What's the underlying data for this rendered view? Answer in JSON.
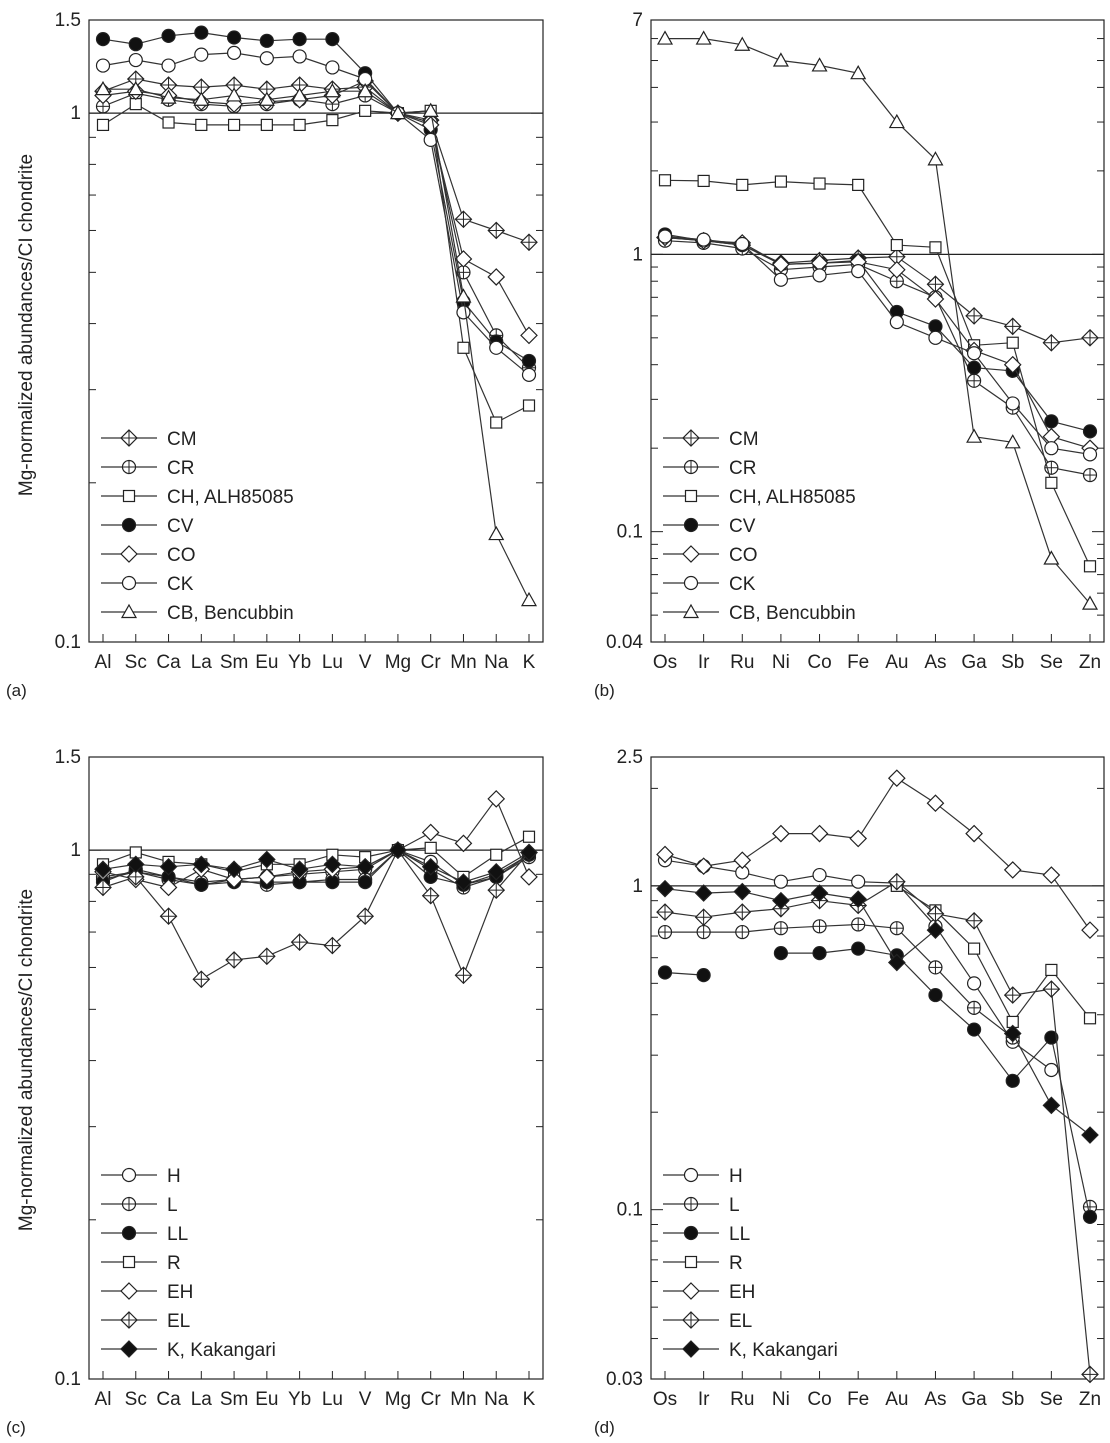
{
  "figure": {
    "ylabel": "Mg-normalized abundances/CI chondrite"
  },
  "chart_data": [
    {
      "type": "line",
      "panel": "(a)",
      "yscale": "log",
      "ylim": [
        0.1,
        1.5
      ],
      "yticks": [
        0.1,
        1,
        1.5
      ],
      "reference_line": 1,
      "categories": [
        "Al",
        "Sc",
        "Ca",
        "La",
        "Sm",
        "Eu",
        "Yb",
        "Lu",
        "V",
        "Mg",
        "Cr",
        "Mn",
        "Na",
        "K"
      ],
      "legend_position": "bottom-left",
      "series": [
        {
          "name": "CM",
          "marker": "diamond-plus",
          "values": [
            1.1,
            1.16,
            1.13,
            1.12,
            1.13,
            1.11,
            1.13,
            1.11,
            1.12,
            1,
            0.97,
            0.63,
            0.6,
            0.57
          ]
        },
        {
          "name": "CR",
          "marker": "circle-plus",
          "values": [
            1.03,
            1.09,
            1.06,
            1.04,
            1.03,
            1.04,
            1.06,
            1.04,
            1.08,
            1,
            0.96,
            0.5,
            0.38,
            0.33
          ]
        },
        {
          "name": "CH, ALH85085",
          "marker": "square-open",
          "values": [
            0.95,
            1.04,
            0.96,
            0.95,
            0.95,
            0.95,
            0.95,
            0.97,
            1.01,
            1,
            1.01,
            0.36,
            0.26,
            0.28
          ]
        },
        {
          "name": "CV",
          "marker": "circle-filled",
          "values": [
            1.38,
            1.35,
            1.4,
            1.42,
            1.39,
            1.37,
            1.38,
            1.38,
            1.19,
            1,
            0.93,
            0.44,
            0.37,
            0.34
          ]
        },
        {
          "name": "CO",
          "marker": "diamond-open",
          "values": [
            1.08,
            1.1,
            1.08,
            1.05,
            1.04,
            1.05,
            1.06,
            1.08,
            1.15,
            1,
            0.95,
            0.53,
            0.49,
            0.38
          ]
        },
        {
          "name": "CK",
          "marker": "circle-open",
          "values": [
            1.23,
            1.26,
            1.23,
            1.29,
            1.3,
            1.27,
            1.28,
            1.22,
            1.16,
            1,
            0.89,
            0.42,
            0.36,
            0.32
          ]
        },
        {
          "name": "CB, Bencubbin",
          "marker": "triangle-open",
          "values": [
            1.11,
            1.11,
            1.07,
            1.06,
            1.08,
            1.06,
            1.08,
            1.1,
            1.1,
            1,
            1.01,
            0.45,
            0.16,
            0.12
          ]
        }
      ]
    },
    {
      "type": "line",
      "panel": "(b)",
      "yscale": "log",
      "ylim": [
        0.04,
        7
      ],
      "yticks": [
        0.04,
        0.1,
        1,
        7
      ],
      "reference_line": 1,
      "categories": [
        "Os",
        "Ir",
        "Ru",
        "Ni",
        "Co",
        "Fe",
        "Au",
        "As",
        "Ga",
        "Sb",
        "Se",
        "Zn"
      ],
      "legend_position": "bottom-left",
      "series": [
        {
          "name": "CM",
          "marker": "diamond-plus",
          "values": [
            1.15,
            1.12,
            1.08,
            0.93,
            0.95,
            0.97,
            0.98,
            0.78,
            0.6,
            0.55,
            0.48,
            0.5
          ]
        },
        {
          "name": "CR",
          "marker": "circle-plus",
          "values": [
            1.12,
            1.1,
            1.05,
            0.88,
            0.9,
            0.92,
            0.8,
            0.7,
            0.35,
            0.28,
            0.17,
            0.16
          ]
        },
        {
          "name": "CH, ALH85085",
          "marker": "square-open",
          "values": [
            1.85,
            1.84,
            1.78,
            1.83,
            1.8,
            1.78,
            1.08,
            1.06,
            0.47,
            0.48,
            0.15,
            0.075
          ]
        },
        {
          "name": "CV",
          "marker": "circle-filled",
          "values": [
            1.18,
            1.12,
            1.08,
            0.92,
            0.93,
            0.95,
            0.62,
            0.55,
            0.39,
            0.38,
            0.25,
            0.23
          ]
        },
        {
          "name": "CO",
          "marker": "diamond-open",
          "values": [
            1.15,
            1.12,
            1.1,
            0.92,
            0.93,
            0.94,
            0.88,
            0.69,
            0.45,
            0.4,
            0.22,
            0.2
          ]
        },
        {
          "name": "CK",
          "marker": "circle-open",
          "values": [
            1.16,
            1.13,
            1.09,
            0.81,
            0.84,
            0.87,
            0.57,
            0.5,
            0.44,
            0.29,
            0.2,
            0.19
          ]
        },
        {
          "name": "CB, Bencubbin",
          "marker": "triangle-open",
          "values": [
            6.0,
            6.0,
            5.7,
            5.0,
            4.8,
            4.5,
            3.0,
            2.2,
            0.22,
            0.21,
            0.08,
            0.055
          ]
        }
      ]
    },
    {
      "type": "line",
      "panel": "(c)",
      "yscale": "log",
      "ylim": [
        0.1,
        1.5
      ],
      "yticks": [
        0.1,
        1,
        1.5
      ],
      "reference_line": 1,
      "categories": [
        "Al",
        "Sc",
        "Ca",
        "La",
        "Sm",
        "Eu",
        "Yb",
        "Lu",
        "V",
        "Mg",
        "Cr",
        "Mn",
        "Na",
        "K"
      ],
      "legend_position": "bottom-left",
      "series": [
        {
          "name": "H",
          "marker": "circle-open",
          "values": [
            0.88,
            0.91,
            0.89,
            0.87,
            0.88,
            0.89,
            0.9,
            0.91,
            0.92,
            1,
            0.95,
            0.86,
            0.9,
            0.98
          ]
        },
        {
          "name": "L",
          "marker": "circle-plus",
          "values": [
            0.89,
            0.91,
            0.88,
            0.86,
            0.88,
            0.86,
            0.87,
            0.88,
            0.88,
            1,
            0.92,
            0.85,
            0.89,
            0.97
          ]
        },
        {
          "name": "LL",
          "marker": "circle-filled",
          "values": [
            0.87,
            0.92,
            0.89,
            0.86,
            0.87,
            0.87,
            0.87,
            0.87,
            0.87,
            1,
            0.89,
            0.86,
            0.89,
            0.98
          ]
        },
        {
          "name": "R",
          "marker": "square-open",
          "values": [
            0.94,
            0.99,
            0.95,
            0.94,
            0.91,
            0.94,
            0.94,
            0.98,
            0.97,
            1,
            1.01,
            0.89,
            0.98,
            1.06
          ]
        },
        {
          "name": "EH",
          "marker": "diamond-open",
          "values": [
            0.91,
            0.88,
            0.85,
            0.92,
            0.88,
            0.89,
            0.91,
            0.92,
            0.93,
            1,
            1.08,
            1.03,
            1.25,
            0.89
          ]
        },
        {
          "name": "EL",
          "marker": "diamond-plus",
          "values": [
            0.85,
            0.89,
            0.75,
            0.57,
            0.62,
            0.63,
            0.67,
            0.66,
            0.75,
            1,
            0.82,
            0.58,
            0.84,
            0.99
          ]
        },
        {
          "name": "K, Kakangari",
          "marker": "diamond-filled",
          "values": [
            0.92,
            0.94,
            0.93,
            0.94,
            0.92,
            0.96,
            0.92,
            0.94,
            0.93,
            1,
            0.93,
            0.87,
            0.91,
            0.99
          ]
        }
      ]
    },
    {
      "type": "line",
      "panel": "(d)",
      "yscale": "log",
      "ylim": [
        0.03,
        2.5
      ],
      "yticks": [
        0.03,
        0.1,
        1,
        2.5
      ],
      "reference_line": 1,
      "categories": [
        "Os",
        "Ir",
        "Ru",
        "Ni",
        "Co",
        "Fe",
        "Au",
        "As",
        "Ga",
        "Sb",
        "Se",
        "Zn"
      ],
      "legend_position": "bottom-left",
      "series": [
        {
          "name": "H",
          "marker": "circle-open",
          "values": [
            1.2,
            1.15,
            1.1,
            1.03,
            1.08,
            1.03,
            1.02,
            0.75,
            0.5,
            0.33,
            0.27,
            null
          ]
        },
        {
          "name": "L",
          "marker": "circle-plus",
          "values": [
            0.72,
            0.72,
            0.72,
            0.74,
            0.75,
            0.76,
            0.74,
            0.56,
            0.42,
            0.34,
            null,
            0.102
          ]
        },
        {
          "name": "LL",
          "marker": "circle-filled",
          "values": [
            0.54,
            0.53,
            null,
            0.62,
            0.62,
            0.64,
            0.61,
            0.46,
            0.36,
            0.25,
            0.34,
            0.095
          ]
        },
        {
          "name": "R",
          "marker": "square-open",
          "values": [
            null,
            null,
            null,
            null,
            null,
            null,
            1.0,
            0.84,
            0.64,
            0.38,
            0.55,
            0.39
          ]
        },
        {
          "name": "EH",
          "marker": "diamond-open",
          "values": [
            1.25,
            1.15,
            1.2,
            1.45,
            1.45,
            1.4,
            2.15,
            1.8,
            1.45,
            1.12,
            1.08,
            0.73
          ]
        },
        {
          "name": "EL",
          "marker": "diamond-plus",
          "values": [
            0.83,
            0.8,
            0.83,
            0.85,
            0.9,
            0.87,
            1.03,
            0.82,
            0.78,
            0.46,
            0.48,
            0.031
          ]
        },
        {
          "name": "K, Kakangari",
          "marker": "diamond-filled",
          "values": [
            0.98,
            0.95,
            0.96,
            0.9,
            0.95,
            0.91,
            0.58,
            0.73,
            null,
            0.35,
            0.21,
            0.17
          ]
        }
      ]
    }
  ]
}
